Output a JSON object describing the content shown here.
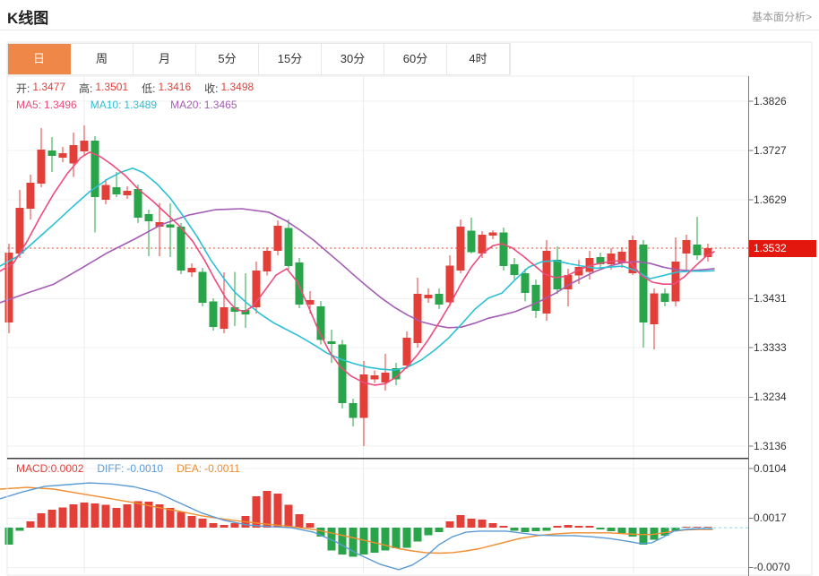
{
  "header": {
    "title": "K线图",
    "link": "基本面分析>"
  },
  "tabs": {
    "items": [
      "日",
      "周",
      "月",
      "5分",
      "15分",
      "30分",
      "60分",
      "4时"
    ],
    "active_index": 0
  },
  "legend": {
    "open_label": "开:",
    "open": "1.3477",
    "high_label": "高:",
    "high": "1.3501",
    "low_label": "低:",
    "low": "1.3416",
    "close_label": "收:",
    "close": "1.3498",
    "ma5_label": "MA5:",
    "ma5": "1.3496",
    "ma10_label": "MA10:",
    "ma10": "1.3489",
    "ma20_label": "MA20:",
    "ma20": "1.3465"
  },
  "macd_legend": {
    "macd_label": "MACD:",
    "macd": "0.0002",
    "diff_label": "DIFF:",
    "diff": "-0.0010",
    "dea_label": "DEA:",
    "dea": "-0.0011"
  },
  "price_axis": {
    "labels": [
      "1.3826",
      "1.3727",
      "1.3629",
      "1.3532",
      "1.3431",
      "1.3333",
      "1.3234",
      "1.3136"
    ],
    "current_price": "1.3532"
  },
  "macd_axis": {
    "labels": [
      "0.0104",
      "0.0017",
      "-0.0070"
    ]
  },
  "colors": {
    "up": "#e13f38",
    "down": "#2aa44a",
    "ma5": "#ee4b7d",
    "ma10": "#2cc0d4",
    "ma20": "#a45db4",
    "diff": "#5b9bd5",
    "dea": "#ef8d2f",
    "tab_active": "#ef8749",
    "price_tag": "#e3170d",
    "dotted_line": "#e8503a",
    "grid": "#f1f1f1",
    "vgrid": "#ececec",
    "axis": "#7a7a7a",
    "border": "#e8e8e8"
  },
  "chart_data": {
    "type": "candlestick",
    "title": "K线图 (daily K-line with MA5/MA10/MA20 and MACD)",
    "y_axis_ticks": [
      1.3826,
      1.3727,
      1.3629,
      1.3532,
      1.3431,
      1.3333,
      1.3234,
      1.3136
    ],
    "y_range": [
      1.3136,
      1.3826
    ],
    "current_price": 1.3532,
    "grid": true,
    "candles": [
      [
        1.3383,
        1.3541,
        1.3362,
        1.3523
      ],
      [
        1.3521,
        1.3649,
        1.3512,
        1.3613
      ],
      [
        1.3611,
        1.3679,
        1.3589,
        1.3663
      ],
      [
        1.3661,
        1.3772,
        1.3654,
        1.3729
      ],
      [
        1.3727,
        1.3754,
        1.3684,
        1.3717
      ],
      [
        1.3713,
        1.3735,
        1.3704,
        1.3722
      ],
      [
        1.3701,
        1.3763,
        1.3675,
        1.3738
      ],
      [
        1.3726,
        1.3778,
        1.3717,
        1.3747
      ],
      [
        1.3747,
        1.3756,
        1.3563,
        1.3634
      ],
      [
        1.3629,
        1.367,
        1.362,
        1.3658
      ],
      [
        1.3654,
        1.3684,
        1.3634,
        1.364
      ],
      [
        1.3638,
        1.3656,
        1.3631,
        1.3647
      ],
      [
        1.365,
        1.3659,
        1.3582,
        1.3593
      ],
      [
        1.36,
        1.3609,
        1.3516,
        1.3586
      ],
      [
        1.3575,
        1.3623,
        1.3516,
        1.3584
      ],
      [
        1.358,
        1.3622,
        1.3514,
        1.3573
      ],
      [
        1.3575,
        1.3582,
        1.348,
        1.3487
      ],
      [
        1.3484,
        1.3502,
        1.3475,
        1.3493
      ],
      [
        1.3485,
        1.3493,
        1.3416,
        1.3423
      ],
      [
        1.3425,
        1.3432,
        1.3367,
        1.3374
      ],
      [
        1.3371,
        1.3484,
        1.3362,
        1.3414
      ],
      [
        1.3414,
        1.3485,
        1.3376,
        1.3405
      ],
      [
        1.3408,
        1.3482,
        1.3373,
        1.3399
      ],
      [
        1.3414,
        1.3505,
        1.3401,
        1.3487
      ],
      [
        1.3485,
        1.3534,
        1.3477,
        1.3527
      ],
      [
        1.3527,
        1.3588,
        1.3518,
        1.3577
      ],
      [
        1.3572,
        1.3589,
        1.3489,
        1.3496
      ],
      [
        1.3503,
        1.3512,
        1.3412,
        1.3419
      ],
      [
        1.3419,
        1.3446,
        1.3401,
        1.3428
      ],
      [
        1.3416,
        1.3426,
        1.3339,
        1.3348
      ],
      [
        1.3346,
        1.3369,
        1.3303,
        1.334
      ],
      [
        1.3339,
        1.3348,
        1.3211,
        1.3222
      ],
      [
        1.3222,
        1.3231,
        1.3175,
        1.3192
      ],
      [
        1.3192,
        1.3306,
        1.3136,
        1.3279
      ],
      [
        1.327,
        1.3287,
        1.3262,
        1.3278
      ],
      [
        1.3263,
        1.3321,
        1.3247,
        1.3283
      ],
      [
        1.3292,
        1.3303,
        1.3258,
        1.327
      ],
      [
        1.3297,
        1.3365,
        1.329,
        1.3353
      ],
      [
        1.3342,
        1.3473,
        1.3333,
        1.3441
      ],
      [
        1.3432,
        1.3451,
        1.3423,
        1.3439
      ],
      [
        1.3441,
        1.3451,
        1.341,
        1.3419
      ],
      [
        1.3424,
        1.3518,
        1.3416,
        1.3497
      ],
      [
        1.3487,
        1.3589,
        1.3482,
        1.3575
      ],
      [
        1.3567,
        1.3593,
        1.3521,
        1.3524
      ],
      [
        1.3521,
        1.3566,
        1.3512,
        1.3559
      ],
      [
        1.3557,
        1.3568,
        1.355,
        1.3563
      ],
      [
        1.3563,
        1.3573,
        1.3487,
        1.3496
      ],
      [
        1.35,
        1.3512,
        1.3469,
        1.3478
      ],
      [
        1.3482,
        1.3491,
        1.3425,
        1.3442
      ],
      [
        1.3459,
        1.3469,
        1.3392,
        1.3407
      ],
      [
        1.3401,
        1.3548,
        1.3387,
        1.3527
      ],
      [
        1.3509,
        1.3536,
        1.3441,
        1.345
      ],
      [
        1.345,
        1.3491,
        1.3416,
        1.3478
      ],
      [
        1.3477,
        1.3509,
        1.346,
        1.3494
      ],
      [
        1.3485,
        1.3527,
        1.3469,
        1.3512
      ],
      [
        1.3514,
        1.3523,
        1.3491,
        1.35
      ],
      [
        1.35,
        1.3532,
        1.3489,
        1.3521
      ],
      [
        1.3503,
        1.3534,
        1.3493,
        1.3525
      ],
      [
        1.3482,
        1.3557,
        1.3478,
        1.3548
      ],
      [
        1.3539,
        1.3548,
        1.3333,
        1.3383
      ],
      [
        1.338,
        1.3451,
        1.333,
        1.3442
      ],
      [
        1.3442,
        1.3451,
        1.3416,
        1.3425
      ],
      [
        1.3425,
        1.3554,
        1.3416,
        1.3505
      ],
      [
        1.3521,
        1.3559,
        1.3487,
        1.3548
      ],
      [
        1.3539,
        1.3595,
        1.3509,
        1.3518
      ],
      [
        1.3514,
        1.3541,
        1.3505,
        1.3532
      ]
    ],
    "ma5": [
      [
        0,
        1.3486
      ],
      [
        15,
        1.3502
      ],
      [
        30,
        1.3545
      ],
      [
        45,
        1.3595
      ],
      [
        60,
        1.3641
      ],
      [
        75,
        1.3681
      ],
      [
        90,
        1.3713
      ],
      [
        100,
        1.3724
      ],
      [
        112,
        1.3715
      ],
      [
        125,
        1.3699
      ],
      [
        140,
        1.3677
      ],
      [
        155,
        1.3649
      ],
      [
        170,
        1.3627
      ],
      [
        185,
        1.3602
      ],
      [
        200,
        1.3577
      ],
      [
        215,
        1.3546
      ],
      [
        228,
        1.3509
      ],
      [
        240,
        1.3469
      ],
      [
        252,
        1.3432
      ],
      [
        263,
        1.341
      ],
      [
        273,
        1.3405
      ],
      [
        283,
        1.3417
      ],
      [
        295,
        1.3446
      ],
      [
        308,
        1.3478
      ],
      [
        320,
        1.3491
      ],
      [
        332,
        1.3464
      ],
      [
        344,
        1.3416
      ],
      [
        356,
        1.3365
      ],
      [
        368,
        1.3324
      ],
      [
        380,
        1.3294
      ],
      [
        392,
        1.3276
      ],
      [
        406,
        1.3263
      ],
      [
        418,
        1.3258
      ],
      [
        430,
        1.3261
      ],
      [
        442,
        1.3274
      ],
      [
        454,
        1.3294
      ],
      [
        466,
        1.3319
      ],
      [
        478,
        1.3349
      ],
      [
        490,
        1.3383
      ],
      [
        502,
        1.3419
      ],
      [
        514,
        1.3459
      ],
      [
        526,
        1.3494
      ],
      [
        538,
        1.3521
      ],
      [
        550,
        1.3537
      ],
      [
        560,
        1.3541
      ],
      [
        572,
        1.3532
      ],
      [
        584,
        1.3516
      ],
      [
        596,
        1.3498
      ],
      [
        608,
        1.348
      ],
      [
        620,
        1.3473
      ],
      [
        632,
        1.3476
      ],
      [
        644,
        1.3487
      ],
      [
        656,
        1.3496
      ],
      [
        668,
        1.3501
      ],
      [
        680,
        1.3505
      ],
      [
        692,
        1.3507
      ],
      [
        704,
        1.3502
      ],
      [
        716,
        1.3477
      ],
      [
        728,
        1.3464
      ],
      [
        740,
        1.346
      ],
      [
        752,
        1.346
      ],
      [
        764,
        1.3475
      ],
      [
        776,
        1.3496
      ],
      [
        788,
        1.3516
      ],
      [
        797,
        1.3525
      ]
    ],
    "ma10": [
      [
        0,
        1.3496
      ],
      [
        20,
        1.3516
      ],
      [
        40,
        1.3548
      ],
      [
        60,
        1.358
      ],
      [
        80,
        1.3613
      ],
      [
        100,
        1.3645
      ],
      [
        120,
        1.367
      ],
      [
        135,
        1.3684
      ],
      [
        148,
        1.3692
      ],
      [
        160,
        1.3683
      ],
      [
        175,
        1.3661
      ],
      [
        190,
        1.3632
      ],
      [
        205,
        1.3595
      ],
      [
        220,
        1.3555
      ],
      [
        235,
        1.3509
      ],
      [
        250,
        1.3471
      ],
      [
        262,
        1.3444
      ],
      [
        275,
        1.3423
      ],
      [
        290,
        1.3401
      ],
      [
        305,
        1.3383
      ],
      [
        320,
        1.3369
      ],
      [
        335,
        1.3355
      ],
      [
        350,
        1.3339
      ],
      [
        365,
        1.3322
      ],
      [
        380,
        1.331
      ],
      [
        395,
        1.3301
      ],
      [
        410,
        1.3294
      ],
      [
        425,
        1.329
      ],
      [
        440,
        1.3288
      ],
      [
        455,
        1.3294
      ],
      [
        470,
        1.3308
      ],
      [
        485,
        1.3328
      ],
      [
        500,
        1.3351
      ],
      [
        515,
        1.338
      ],
      [
        530,
        1.341
      ],
      [
        545,
        1.3432
      ],
      [
        560,
        1.3442
      ],
      [
        575,
        1.3469
      ],
      [
        590,
        1.3494
      ],
      [
        605,
        1.3505
      ],
      [
        620,
        1.3507
      ],
      [
        635,
        1.3501
      ],
      [
        650,
        1.3496
      ],
      [
        665,
        1.3492
      ],
      [
        680,
        1.3494
      ],
      [
        695,
        1.3496
      ],
      [
        710,
        1.3487
      ],
      [
        725,
        1.3471
      ],
      [
        740,
        1.3477
      ],
      [
        755,
        1.3484
      ],
      [
        770,
        1.3486
      ],
      [
        785,
        1.3486
      ],
      [
        797,
        1.3487
      ]
    ],
    "ma20": [
      [
        0,
        1.3423
      ],
      [
        30,
        1.3442
      ],
      [
        60,
        1.346
      ],
      [
        90,
        1.3491
      ],
      [
        120,
        1.3523
      ],
      [
        150,
        1.355
      ],
      [
        180,
        1.3579
      ],
      [
        210,
        1.3598
      ],
      [
        240,
        1.3609
      ],
      [
        270,
        1.3611
      ],
      [
        300,
        1.3604
      ],
      [
        320,
        1.3586
      ],
      [
        335,
        1.3568
      ],
      [
        350,
        1.3548
      ],
      [
        365,
        1.3525
      ],
      [
        380,
        1.3502
      ],
      [
        395,
        1.3478
      ],
      [
        410,
        1.3455
      ],
      [
        425,
        1.3433
      ],
      [
        440,
        1.3414
      ],
      [
        455,
        1.3398
      ],
      [
        470,
        1.3385
      ],
      [
        485,
        1.3378
      ],
      [
        500,
        1.3373
      ],
      [
        515,
        1.3374
      ],
      [
        530,
        1.3382
      ],
      [
        545,
        1.3392
      ],
      [
        560,
        1.3398
      ],
      [
        575,
        1.3405
      ],
      [
        590,
        1.3416
      ],
      [
        605,
        1.3428
      ],
      [
        620,
        1.3442
      ],
      [
        635,
        1.3459
      ],
      [
        650,
        1.3473
      ],
      [
        665,
        1.3486
      ],
      [
        680,
        1.3496
      ],
      [
        695,
        1.3503
      ],
      [
        710,
        1.3505
      ],
      [
        725,
        1.3502
      ],
      [
        740,
        1.3494
      ],
      [
        755,
        1.3489
      ],
      [
        770,
        1.3487
      ],
      [
        785,
        1.3489
      ],
      [
        797,
        1.3491
      ]
    ],
    "macd": {
      "ticks": [
        0.0104,
        0.0017,
        -0.007
      ],
      "histogram": [
        -0.003,
        -0.0005,
        0.0011,
        0.0025,
        0.0032,
        0.0036,
        0.0041,
        0.0044,
        0.0043,
        0.004,
        0.0035,
        0.0041,
        0.0047,
        0.0046,
        0.0041,
        0.0035,
        0.0028,
        0.0021,
        0.0016,
        0.0008,
        0.0005,
        0.0008,
        0.0021,
        0.0055,
        0.0065,
        0.006,
        0.004,
        0.0024,
        0.0008,
        -0.0016,
        -0.004,
        -0.0047,
        -0.0051,
        -0.0047,
        -0.0044,
        -0.004,
        -0.0036,
        -0.0035,
        -0.0024,
        -0.0013,
        -0.0008,
        0.0011,
        0.0022,
        0.0016,
        0.0014,
        0.0008,
        0.0003,
        -0.0005,
        -0.0008,
        -0.0006,
        -0.0005,
        0.0003,
        0.0005,
        0.0003,
        0.0003,
        -0.0003,
        -0.0006,
        -0.0009,
        -0.0016,
        -0.003,
        -0.0021,
        -0.0014,
        -0.0006,
        0.0002,
        0.0002,
        0.0002
      ],
      "diff": [
        [
          0,
          0.0051
        ],
        [
          25,
          0.0063
        ],
        [
          50,
          0.0073
        ],
        [
          75,
          0.0076
        ],
        [
          100,
          0.0079
        ],
        [
          125,
          0.0077
        ],
        [
          150,
          0.0072
        ],
        [
          175,
          0.0062
        ],
        [
          200,
          0.0044
        ],
        [
          225,
          0.0026
        ],
        [
          250,
          0.0013
        ],
        [
          275,
          0.0005
        ],
        [
          300,
          0.0002
        ],
        [
          325,
          0
        ],
        [
          350,
          -0.0008
        ],
        [
          375,
          -0.0025
        ],
        [
          400,
          -0.0047
        ],
        [
          425,
          -0.0065
        ],
        [
          445,
          -0.0074
        ],
        [
          460,
          -0.0066
        ],
        [
          475,
          -0.0051
        ],
        [
          490,
          -0.003
        ],
        [
          505,
          -0.0016
        ],
        [
          520,
          -0.0008
        ],
        [
          535,
          -0.0006
        ],
        [
          550,
          -0.0006
        ],
        [
          565,
          -0.0006
        ],
        [
          580,
          -0.0009
        ],
        [
          600,
          -0.0013
        ],
        [
          620,
          -0.0014
        ],
        [
          640,
          -0.0014
        ],
        [
          660,
          -0.0016
        ],
        [
          680,
          -0.0019
        ],
        [
          700,
          -0.0024
        ],
        [
          715,
          -0.0028
        ],
        [
          727,
          -0.0027
        ],
        [
          740,
          -0.0017
        ],
        [
          752,
          -0.0006
        ],
        [
          765,
          -0.0003
        ],
        [
          780,
          -0.0002
        ],
        [
          795,
          -0.0002
        ]
      ],
      "dea": [
        [
          0,
          0.0068
        ],
        [
          30,
          0.0071
        ],
        [
          60,
          0.0068
        ],
        [
          90,
          0.006
        ],
        [
          120,
          0.0052
        ],
        [
          150,
          0.0044
        ],
        [
          175,
          0.0036
        ],
        [
          200,
          0.0029
        ],
        [
          225,
          0.0021
        ],
        [
          250,
          0.0015
        ],
        [
          275,
          0.001
        ],
        [
          300,
          0.0006
        ],
        [
          325,
          0.0002
        ],
        [
          350,
          -0.0003
        ],
        [
          375,
          -0.0011
        ],
        [
          400,
          -0.002
        ],
        [
          425,
          -0.0029
        ],
        [
          445,
          -0.0037
        ],
        [
          460,
          -0.0041
        ],
        [
          475,
          -0.0044
        ],
        [
          490,
          -0.0045
        ],
        [
          505,
          -0.0044
        ],
        [
          520,
          -0.0041
        ],
        [
          535,
          -0.0037
        ],
        [
          550,
          -0.0031
        ],
        [
          565,
          -0.0025
        ],
        [
          580,
          -0.0019
        ],
        [
          600,
          -0.0014
        ],
        [
          620,
          -0.0011
        ],
        [
          640,
          -0.0009
        ],
        [
          660,
          -0.0009
        ],
        [
          680,
          -0.0009
        ],
        [
          700,
          -0.0011
        ],
        [
          715,
          -0.0012
        ],
        [
          727,
          -0.0012
        ],
        [
          740,
          -0.0009
        ],
        [
          752,
          -0.0006
        ],
        [
          765,
          -0.0004
        ],
        [
          780,
          -0.0003
        ],
        [
          795,
          -0.0003
        ]
      ]
    }
  }
}
